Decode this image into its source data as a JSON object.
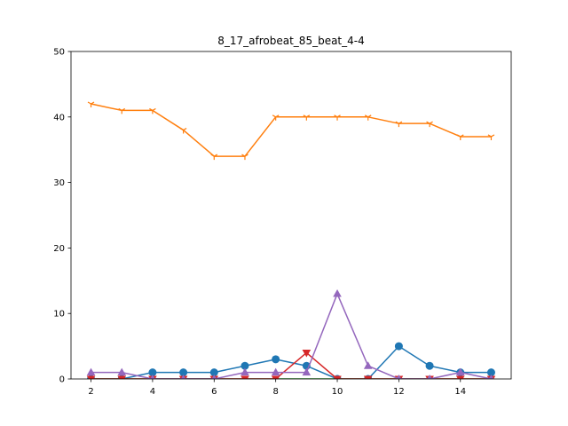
{
  "chart_data": {
    "type": "line",
    "title": "8_17_afrobeat_85_beat_4-4",
    "xlabel": "",
    "ylabel": "",
    "xlim": [
      1.35,
      15.65
    ],
    "ylim": [
      0,
      50
    ],
    "x_ticks": [
      2,
      4,
      6,
      8,
      10,
      12,
      14
    ],
    "y_ticks": [
      0,
      10,
      20,
      30,
      40,
      50
    ],
    "grid": false,
    "x": [
      2,
      3,
      4,
      5,
      6,
      7,
      8,
      9,
      10,
      11,
      12,
      13,
      14,
      15
    ],
    "series": [
      {
        "color": "#1f77b4",
        "marker": "circle",
        "values": [
          0,
          0,
          1,
          1,
          1,
          2,
          3,
          2,
          0,
          0,
          5,
          2,
          1,
          1
        ]
      },
      {
        "color": "#ff7f0e",
        "marker": "tri_down",
        "values": [
          42,
          41,
          41,
          38,
          34,
          34,
          40,
          40,
          40,
          40,
          39,
          39,
          37,
          37
        ]
      },
      {
        "color": "#2ca02c",
        "marker": "none",
        "values": [
          0,
          0,
          0,
          0,
          0,
          0,
          0,
          0,
          0,
          0,
          0,
          0,
          0,
          0
        ]
      },
      {
        "color": "#d62728",
        "marker": "triangle_down",
        "values": [
          0,
          0,
          0,
          0,
          0,
          0,
          0,
          4,
          0,
          0,
          0,
          0,
          0,
          0
        ]
      },
      {
        "color": "#9467bd",
        "marker": "triangle_up",
        "values": [
          1,
          1,
          0,
          0,
          0,
          1,
          1,
          1,
          13,
          2,
          0,
          0,
          1,
          0
        ]
      }
    ]
  }
}
